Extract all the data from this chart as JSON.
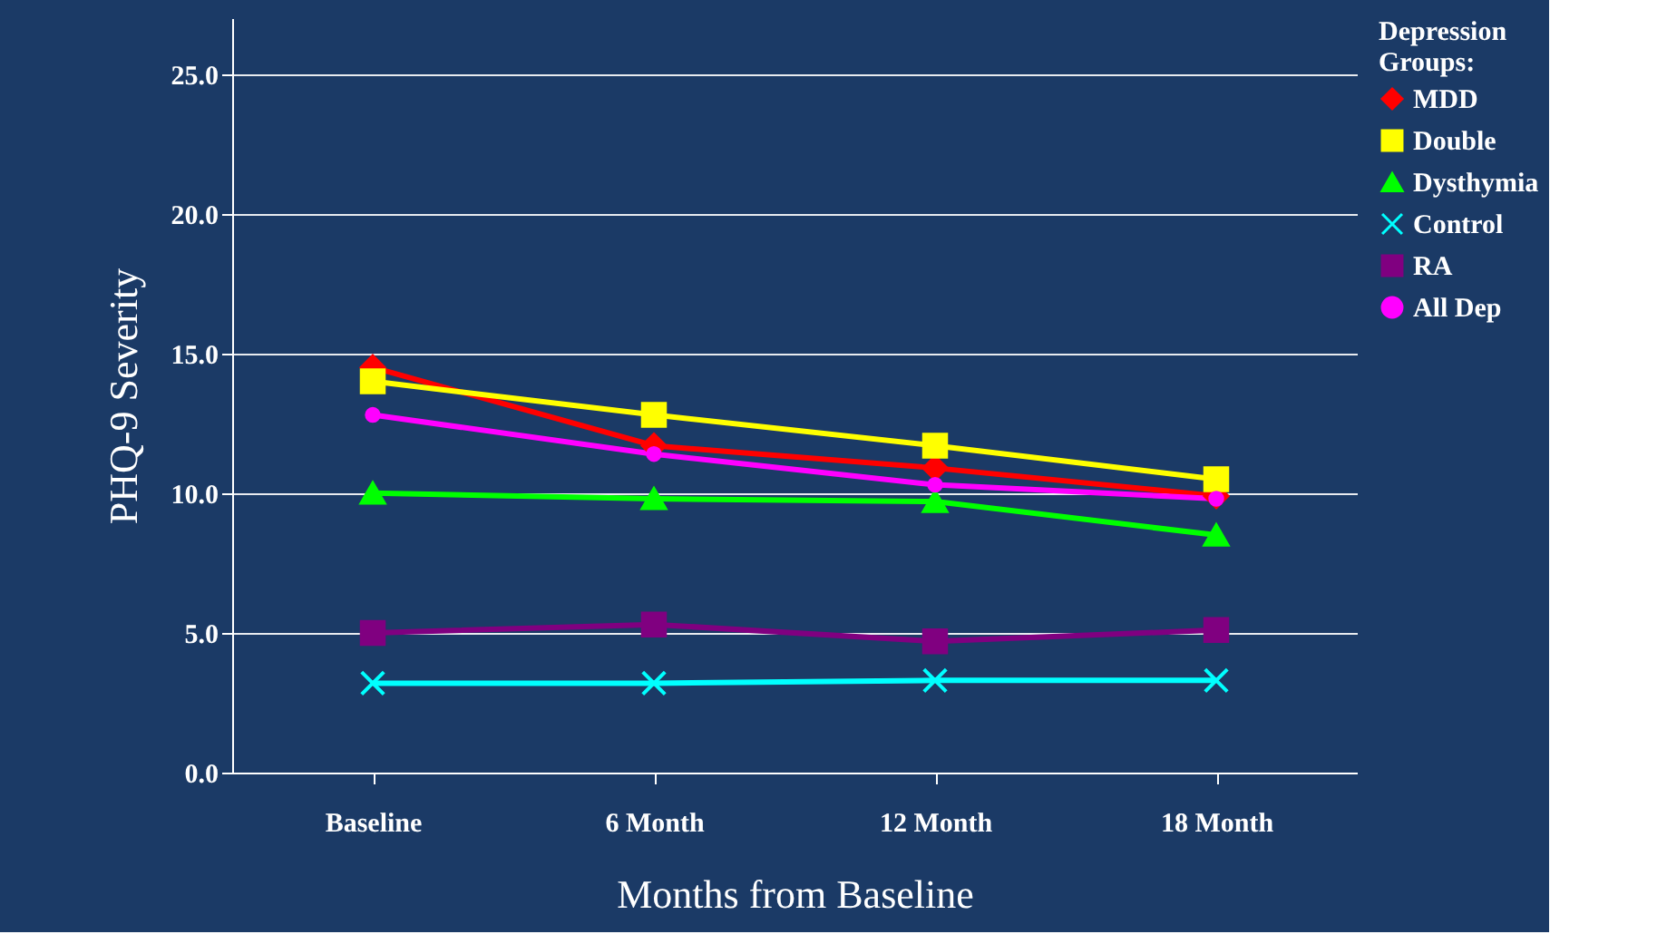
{
  "chart_data": {
    "type": "line",
    "xlabel": "Months from Baseline",
    "ylabel": "PHQ-9 Severity",
    "legend_title": "Depression Groups:",
    "categories": [
      "Baseline",
      "6 Month",
      "12 Month",
      "18 Month"
    ],
    "ylim": [
      0,
      27
    ],
    "yticks": [
      {
        "value": 0,
        "label": "0.0"
      },
      {
        "value": 5,
        "label": "5.0"
      },
      {
        "value": 10,
        "label": "10.0"
      },
      {
        "value": 15,
        "label": "15.0"
      },
      {
        "value": 20,
        "label": "20.0"
      },
      {
        "value": 25,
        "label": "25.0"
      }
    ],
    "grid": "y",
    "legend": "right",
    "series": [
      {
        "name": "MDD",
        "color": "#ff0000",
        "marker": "diamond",
        "values": [
          14.5,
          11.7,
          10.9,
          9.9
        ]
      },
      {
        "name": "Double",
        "color": "#ffff00",
        "marker": "square",
        "values": [
          14.0,
          12.8,
          11.7,
          10.5
        ]
      },
      {
        "name": "Dysthymia",
        "color": "#00ff00",
        "marker": "triangle",
        "values": [
          10.0,
          9.8,
          9.7,
          8.5
        ]
      },
      {
        "name": "Control",
        "color": "#00ffff",
        "marker": "cross",
        "values": [
          3.2,
          3.2,
          3.3,
          3.3
        ]
      },
      {
        "name": "RA",
        "color": "#800080",
        "marker": "square",
        "values": [
          5.0,
          5.3,
          4.7,
          5.1
        ]
      },
      {
        "name": "All Dep",
        "color": "#ff00ff",
        "marker": "circle",
        "values": [
          12.8,
          11.4,
          10.3,
          9.8
        ]
      }
    ]
  }
}
